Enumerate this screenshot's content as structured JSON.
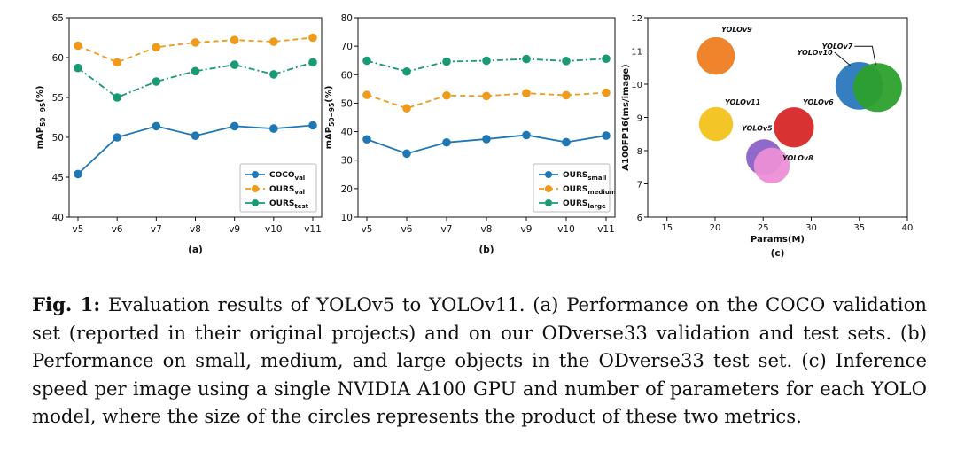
{
  "caption": {
    "label": "Fig. 1:",
    "text": "Evaluation results of YOLOv5 to YOLOv11. (a) Performance on the COCO validation set (reported in their original projects) and on our ODverse33 validation and test sets. (b) Performance on small, medium, and large objects in the ODverse33 test set. (c) Inference speed per image using a single NVIDIA A100 GPU and number of parameters for each YOLO model, where the size of the circles represents the product of these two metrics."
  },
  "colors": {
    "blue": "#1f77b4",
    "orange": "#ef9a1a",
    "green": "#1a9a74"
  },
  "chart_data": [
    {
      "id": "a",
      "type": "line",
      "panel_label": "(a)",
      "ylabel": "mAP",
      "ylabel_sub": "50−95",
      "ylabel_suffix": "(%)",
      "categories": [
        "v5",
        "v6",
        "v7",
        "v8",
        "v9",
        "v10",
        "v11"
      ],
      "ylim": [
        40,
        65
      ],
      "yticks": [
        40,
        45,
        50,
        55,
        60,
        65
      ],
      "legend_position": "bottom-right",
      "series": [
        {
          "name": "COCO",
          "sub": "val",
          "style": "solid",
          "color": "#1f77b4",
          "values": [
            45.4,
            50.0,
            51.4,
            50.2,
            51.4,
            51.1,
            51.5
          ]
        },
        {
          "name": "OURS",
          "sub": "val",
          "style": "dashed",
          "color": "#ef9a1a",
          "values": [
            61.5,
            59.4,
            61.3,
            61.9,
            62.2,
            62.0,
            62.5
          ]
        },
        {
          "name": "OURS",
          "sub": "test",
          "style": "dashdot",
          "color": "#1a9a74",
          "values": [
            58.7,
            55.0,
            57.0,
            58.3,
            59.1,
            57.9,
            59.4
          ]
        }
      ]
    },
    {
      "id": "b",
      "type": "line",
      "panel_label": "(b)",
      "ylabel": "mAP",
      "ylabel_sub": "50−95",
      "ylabel_suffix": "(%)",
      "categories": [
        "v5",
        "v6",
        "v7",
        "v8",
        "v9",
        "v10",
        "v11"
      ],
      "ylim": [
        10,
        80
      ],
      "yticks": [
        10,
        20,
        30,
        40,
        50,
        60,
        70,
        80
      ],
      "legend_position": "bottom-right",
      "series": [
        {
          "name": "OURS",
          "sub": "small",
          "style": "solid",
          "color": "#1f77b4",
          "values": [
            37.3,
            32.3,
            36.2,
            37.4,
            38.8,
            36.3,
            38.6
          ]
        },
        {
          "name": "OURS",
          "sub": "medium",
          "style": "dashed",
          "color": "#ef9a1a",
          "values": [
            52.9,
            48.2,
            52.7,
            52.5,
            53.5,
            52.8,
            53.7
          ]
        },
        {
          "name": "OURS",
          "sub": "large",
          "style": "dashdot",
          "color": "#1a9a74",
          "values": [
            64.9,
            61.1,
            64.6,
            64.9,
            65.5,
            64.8,
            65.6
          ]
        }
      ]
    },
    {
      "id": "c",
      "type": "scatter",
      "panel_label": "(c)",
      "xlabel": "Params(M)",
      "ylabel": "A100FP16(ms/image)",
      "xlim": [
        13,
        40
      ],
      "ylim": [
        6,
        12
      ],
      "xticks": [
        15,
        20,
        25,
        30,
        35,
        40
      ],
      "yticks": [
        6,
        7,
        8,
        9,
        10,
        11,
        12
      ],
      "points": [
        {
          "label": "YOLOv9",
          "x": 20.1,
          "y": 10.85,
          "size": 218,
          "color": "#ef7d22"
        },
        {
          "label": "YOLOv11",
          "x": 20.1,
          "y": 8.8,
          "size": 177,
          "color": "#f2c21b"
        },
        {
          "label": "YOLOv6",
          "x": 28.2,
          "y": 8.7,
          "size": 245,
          "color": "#d62728"
        },
        {
          "label": "YOLOv5",
          "x": 25.1,
          "y": 7.8,
          "size": 196,
          "color": "#8a62c8"
        },
        {
          "label": "YOLOv8",
          "x": 25.9,
          "y": 7.55,
          "size": 196,
          "color": "#ec8fd6"
        },
        {
          "label": "YOLOv10",
          "x": 35.0,
          "y": 9.95,
          "size": 348,
          "color": "#2a77bd"
        },
        {
          "label": "YOLOv7",
          "x": 36.9,
          "y": 9.9,
          "size": 365,
          "color": "#2ca02c"
        }
      ]
    }
  ]
}
